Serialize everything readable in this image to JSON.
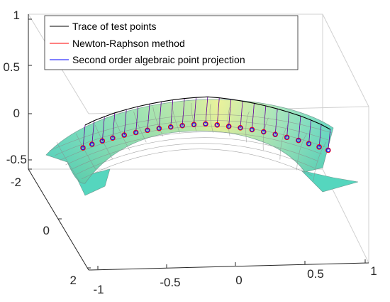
{
  "chart_data": {
    "type": "surface3d",
    "title": "",
    "xlabel": "",
    "ylabel": "",
    "zlabel": "",
    "x_ticks": [
      "-1",
      "-0.5",
      "0",
      "0.5",
      "1"
    ],
    "y_ticks": [
      "-2",
      "0",
      "2"
    ],
    "z_ticks": [
      "1",
      "0.5",
      "0",
      "-0.5"
    ],
    "xlim": [
      -1,
      1
    ],
    "ylim": [
      -2,
      2
    ],
    "zlim": [
      -0.6,
      1
    ],
    "grid": true,
    "legend_position": "top-left",
    "legend": [
      {
        "label": "Trace of test points",
        "color": "#000000"
      },
      {
        "label": "Newton-Raphson method",
        "color": "#ff0000"
      },
      {
        "label": "Second order algebraic point projection",
        "color": "#0000ff"
      }
    ],
    "surface": {
      "description_colors": [
        "#55d6be",
        "#e8f08a"
      ],
      "grid_color": "#888888"
    },
    "series": [
      {
        "name": "Trace of test points",
        "points": [
          [
            -0.95,
            -0.3
          ],
          [
            -0.88,
            -0.2
          ],
          [
            -0.8,
            -0.11
          ],
          [
            -0.72,
            -0.03
          ],
          [
            -0.63,
            0.04
          ],
          [
            -0.54,
            0.1
          ],
          [
            -0.45,
            0.15
          ],
          [
            -0.36,
            0.19
          ],
          [
            -0.27,
            0.22
          ],
          [
            -0.18,
            0.24
          ],
          [
            -0.09,
            0.25
          ],
          [
            0.0,
            0.25
          ],
          [
            0.09,
            0.24
          ],
          [
            0.18,
            0.22
          ],
          [
            0.27,
            0.19
          ],
          [
            0.36,
            0.15
          ],
          [
            0.45,
            0.1
          ],
          [
            0.54,
            0.04
          ],
          [
            0.63,
            -0.03
          ],
          [
            0.72,
            -0.11
          ],
          [
            0.8,
            -0.2
          ],
          [
            0.88,
            -0.3
          ],
          [
            0.95,
            -0.41
          ]
        ]
      },
      {
        "name": "Newton-Raphson method",
        "points": [
          [
            -0.95,
            -0.52
          ],
          [
            -0.88,
            -0.44
          ],
          [
            -0.8,
            -0.37
          ],
          [
            -0.72,
            -0.31
          ],
          [
            -0.63,
            -0.25
          ],
          [
            -0.54,
            -0.2
          ],
          [
            -0.45,
            -0.16
          ],
          [
            -0.36,
            -0.13
          ],
          [
            -0.27,
            -0.11
          ],
          [
            -0.18,
            -0.09
          ],
          [
            -0.09,
            -0.08
          ],
          [
            0.0,
            -0.08
          ],
          [
            0.09,
            -0.09
          ],
          [
            0.18,
            -0.11
          ],
          [
            0.27,
            -0.13
          ],
          [
            0.36,
            -0.16
          ],
          [
            0.45,
            -0.2
          ],
          [
            0.54,
            -0.25
          ],
          [
            0.63,
            -0.31
          ],
          [
            0.72,
            -0.37
          ],
          [
            0.8,
            -0.44
          ],
          [
            0.88,
            -0.51
          ],
          [
            0.95,
            -0.58
          ]
        ]
      },
      {
        "name": "Second order algebraic point projection",
        "points": [
          [
            -0.95,
            -0.52
          ],
          [
            -0.88,
            -0.44
          ],
          [
            -0.8,
            -0.37
          ],
          [
            -0.72,
            -0.31
          ],
          [
            -0.63,
            -0.25
          ],
          [
            -0.54,
            -0.2
          ],
          [
            -0.45,
            -0.16
          ],
          [
            -0.36,
            -0.13
          ],
          [
            -0.27,
            -0.11
          ],
          [
            -0.18,
            -0.09
          ],
          [
            -0.09,
            -0.08
          ],
          [
            0.0,
            -0.08
          ],
          [
            0.09,
            -0.09
          ],
          [
            0.18,
            -0.11
          ],
          [
            0.27,
            -0.13
          ],
          [
            0.36,
            -0.16
          ],
          [
            0.45,
            -0.2
          ],
          [
            0.54,
            -0.25
          ],
          [
            0.63,
            -0.31
          ],
          [
            0.72,
            -0.37
          ],
          [
            0.8,
            -0.44
          ],
          [
            0.88,
            -0.51
          ],
          [
            0.95,
            -0.58
          ]
        ]
      }
    ]
  }
}
